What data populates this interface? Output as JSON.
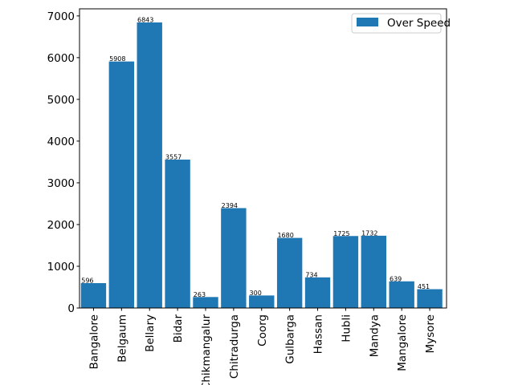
{
  "chart_data": {
    "type": "bar",
    "categories": [
      "Bangalore",
      "Belgaum",
      "Bellary",
      "Bidar",
      "Chikmangalur",
      "Chitradurga",
      "Coorg",
      "Gulbarga",
      "Hassan",
      "Hubli",
      "Mandya",
      "Mangalore",
      "Mysore"
    ],
    "series": [
      {
        "name": "Over Speed",
        "values": [
          596,
          5908,
          6843,
          3557,
          263,
          2394,
          300,
          1680,
          734,
          1725,
          1732,
          639,
          451
        ],
        "color": "#1f77b4"
      }
    ],
    "data_labels": [
      "596",
      "5908",
      "6843",
      "3557",
      "263",
      "2394",
      "300",
      "1680",
      "734",
      "1725",
      "1732",
      "639",
      "451"
    ],
    "yticks": [
      0,
      1000,
      2000,
      3000,
      4000,
      5000,
      6000,
      7000
    ],
    "ylim": [
      0,
      7170
    ],
    "xlabel": "",
    "ylabel": "",
    "title": "",
    "legend_position": "top-right",
    "grid": false,
    "xtick_rotation": "vertical"
  }
}
